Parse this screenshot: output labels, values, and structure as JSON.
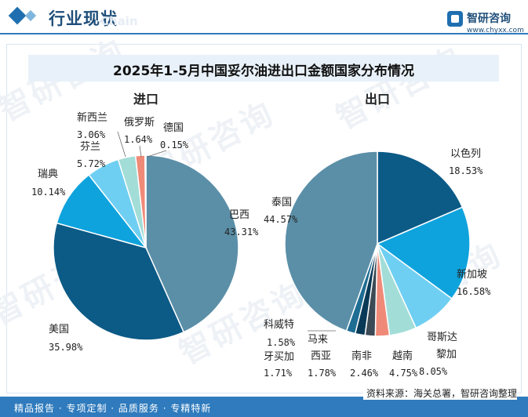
{
  "header": {
    "title": "行业现状",
    "watermark_text": "Chain",
    "logo_text": "智研咨询",
    "logo_url": "www.chyxx.com"
  },
  "watermark": "智研咨询",
  "chart_title": "2025年1-5月中国妥尔油进出口金额国家分布情况",
  "footer": {
    "left": "精品报告 · 专项定制 · 品质服务 · 专精特新",
    "source": "资料来源：海关总署，智研咨询整理"
  },
  "chart_data": [
    {
      "type": "pie",
      "title": "进口",
      "unit": "%",
      "slices": [
        {
          "name": "巴西",
          "value": 43.31,
          "label": "43.31%",
          "color": "#5b8fa8"
        },
        {
          "name": "美国",
          "value": 35.98,
          "label": "35.98%",
          "color": "#0c5a86"
        },
        {
          "name": "瑞典",
          "value": 10.14,
          "label": "10.14%",
          "color": "#0fa3dd"
        },
        {
          "name": "芬兰",
          "value": 5.72,
          "label": "5.72%",
          "color": "#6fcff2"
        },
        {
          "name": "新西兰",
          "value": 3.06,
          "label": "3.06%",
          "color": "#a3ddd8"
        },
        {
          "name": "俄罗斯",
          "value": 1.64,
          "label": "1.64%",
          "color": "#f08a78"
        },
        {
          "name": "德国",
          "value": 0.15,
          "label": "0.15%",
          "color": "#3b4a55"
        }
      ]
    },
    {
      "type": "pie",
      "title": "出口",
      "unit": "%",
      "slices": [
        {
          "name": "以色列",
          "value": 18.53,
          "label": "18.53%",
          "color": "#0c5a86"
        },
        {
          "name": "新加坡",
          "value": 16.58,
          "label": "16.58%",
          "color": "#0fa3dd"
        },
        {
          "name": "哥斯达黎加",
          "value": 8.05,
          "label": "8.05%",
          "color": "#6fcff2"
        },
        {
          "name": "越南",
          "value": 4.75,
          "label": "4.75%",
          "color": "#a3ddd8"
        },
        {
          "name": "南非",
          "value": 2.46,
          "label": "2.46%",
          "color": "#f08a78"
        },
        {
          "name": "马来西亚",
          "value": 1.78,
          "label": "1.78%",
          "color": "#3b4a55"
        },
        {
          "name": "牙买加",
          "value": 1.71,
          "label": "1.71%",
          "color": "#083a57"
        },
        {
          "name": "科威特",
          "value": 1.58,
          "label": "1.58%",
          "color": "#1e6d93"
        },
        {
          "name": "泰国",
          "value": 44.57,
          "label": "44.57%",
          "color": "#5b8fa8"
        }
      ]
    }
  ]
}
